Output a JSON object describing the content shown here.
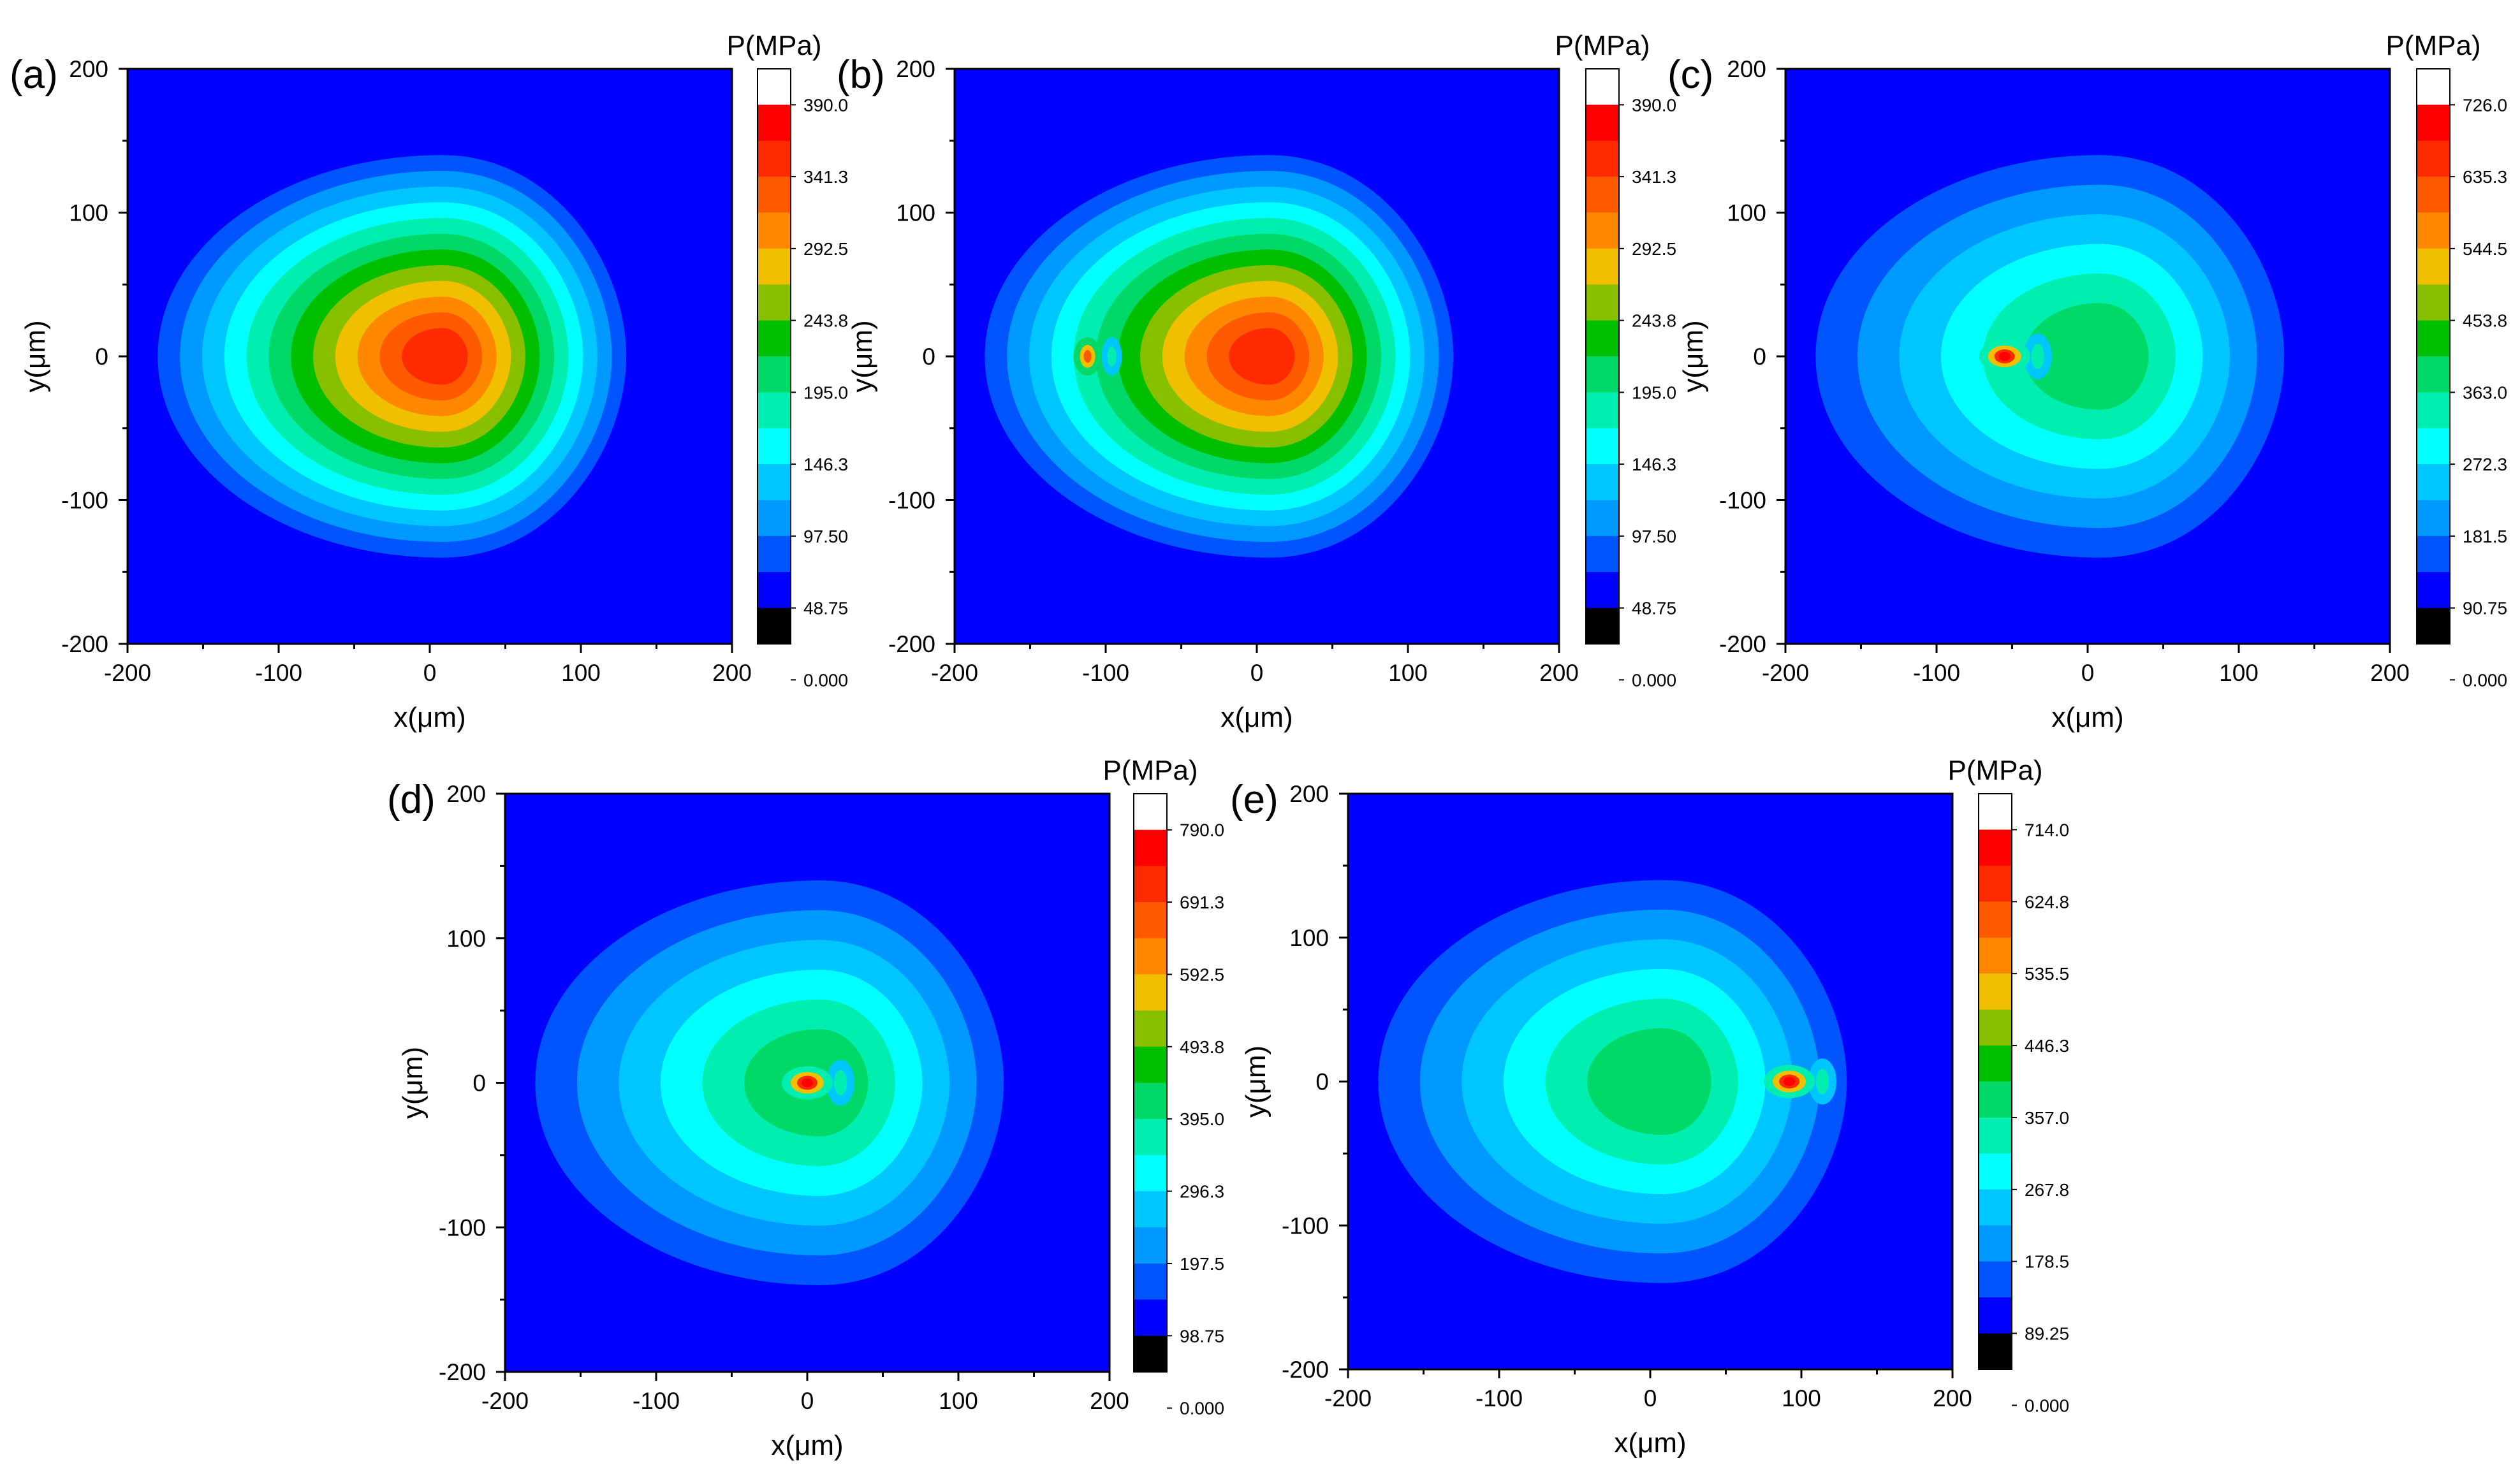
{
  "figure_caption_note": "",
  "colormap": [
    "#000000",
    "#0000ff",
    "#0055ff",
    "#0099ff",
    "#00c6ff",
    "#00ffff",
    "#00efb0",
    "#00d968",
    "#00bf00",
    "#88c000",
    "#f0c000",
    "#ff8800",
    "#ff5a00",
    "#ff2a00",
    "#ff0000",
    "#ffffff"
  ],
  "chart_data": [
    {
      "panel": "(a)",
      "type": "heatmap",
      "title": "",
      "xlabel": "x(μm)",
      "ylabel": "y(μm)",
      "xlim": [
        -200,
        200
      ],
      "ylim": [
        -200,
        200
      ],
      "xticks": [
        "-200",
        "-100",
        "0",
        "100",
        "200"
      ],
      "yticks": [
        "200",
        "100",
        "0",
        "-100",
        "-200"
      ],
      "colorbar_title": "P(MPa)",
      "colorbar_labels": [
        "390.0",
        "341.3",
        "292.5",
        "243.8",
        "195.0",
        "146.3",
        "97.50",
        "48.75",
        "0.000"
      ],
      "max_value": 390.0,
      "contact_outer_boundary": {
        "x_min": -180,
        "x_max": 130,
        "y_max": 140
      },
      "peak_center": [
        8,
        0
      ],
      "hotspot": null
    },
    {
      "panel": "(b)",
      "type": "heatmap",
      "title": "",
      "xlabel": "x(μm)",
      "ylabel": "y(μm)",
      "xlim": [
        -200,
        200
      ],
      "ylim": [
        -200,
        200
      ],
      "xticks": [
        "-200",
        "-100",
        "0",
        "100",
        "200"
      ],
      "yticks": [
        "200",
        "100",
        "0",
        "-100",
        "-200"
      ],
      "colorbar_title": "P(MPa)",
      "colorbar_labels": [
        "390.0",
        "341.3",
        "292.5",
        "243.8",
        "195.0",
        "146.3",
        "97.50",
        "48.75",
        "0.000"
      ],
      "max_value": 390.0,
      "contact_outer_boundary": {
        "x_min": -180,
        "x_max": 130,
        "y_max": 140
      },
      "peak_center": [
        8,
        0
      ],
      "hotspot": {
        "x": -112,
        "y": 0
      }
    },
    {
      "panel": "(c)",
      "type": "heatmap",
      "title": "",
      "xlabel": "x(μm)",
      "ylabel": "y(μm)",
      "xlim": [
        -200,
        200
      ],
      "ylim": [
        -200,
        200
      ],
      "xticks": [
        "-200",
        "-100",
        "0",
        "100",
        "200"
      ],
      "yticks": [
        "200",
        "100",
        "0",
        "-100",
        "-200"
      ],
      "colorbar_title": "P(MPa)",
      "colorbar_labels": [
        "726.0",
        "635.3",
        "544.5",
        "453.8",
        "363.0",
        "272.3",
        "181.5",
        "90.75",
        "0.000"
      ],
      "max_value": 726.0,
      "contact_outer_boundary": {
        "x_min": -180,
        "x_max": 130,
        "y_max": 140
      },
      "peak_center": [
        8,
        0
      ],
      "hotspot": {
        "x": -55,
        "y": 0
      }
    },
    {
      "panel": "(d)",
      "type": "heatmap",
      "title": "",
      "xlabel": "x(μm)",
      "ylabel": "y(μm)",
      "xlim": [
        -200,
        200
      ],
      "ylim": [
        -200,
        200
      ],
      "xticks": [
        "-200",
        "-100",
        "0",
        "100",
        "200"
      ],
      "yticks": [
        "200",
        "100",
        "0",
        "-100",
        "-200"
      ],
      "colorbar_title": "P(MPa)",
      "colorbar_labels": [
        "790.0",
        "691.3",
        "592.5",
        "493.8",
        "395.0",
        "296.3",
        "197.5",
        "98.75",
        "0.000"
      ],
      "max_value": 790.0,
      "contact_outer_boundary": {
        "x_min": -180,
        "x_max": 130,
        "y_max": 140
      },
      "peak_center": [
        8,
        0
      ],
      "hotspot": {
        "x": 0,
        "y": 0
      }
    },
    {
      "panel": "(e)",
      "type": "heatmap",
      "title": "",
      "xlabel": "x(μm)",
      "ylabel": "y(μm)",
      "xlim": [
        -200,
        200
      ],
      "ylim": [
        -200,
        200
      ],
      "xticks": [
        "-200",
        "-100",
        "0",
        "100",
        "200"
      ],
      "yticks": [
        "200",
        "100",
        "0",
        "-100",
        "-200"
      ],
      "colorbar_title": "P(MPa)",
      "colorbar_labels": [
        "714.0",
        "624.8",
        "535.5",
        "446.3",
        "357.0",
        "267.8",
        "178.5",
        "89.25",
        "0.000"
      ],
      "max_value": 714.0,
      "contact_outer_boundary": {
        "x_min": -180,
        "x_max": 130,
        "y_max": 140
      },
      "peak_center": [
        8,
        0
      ],
      "hotspot": {
        "x": 92,
        "y": 0
      }
    }
  ]
}
